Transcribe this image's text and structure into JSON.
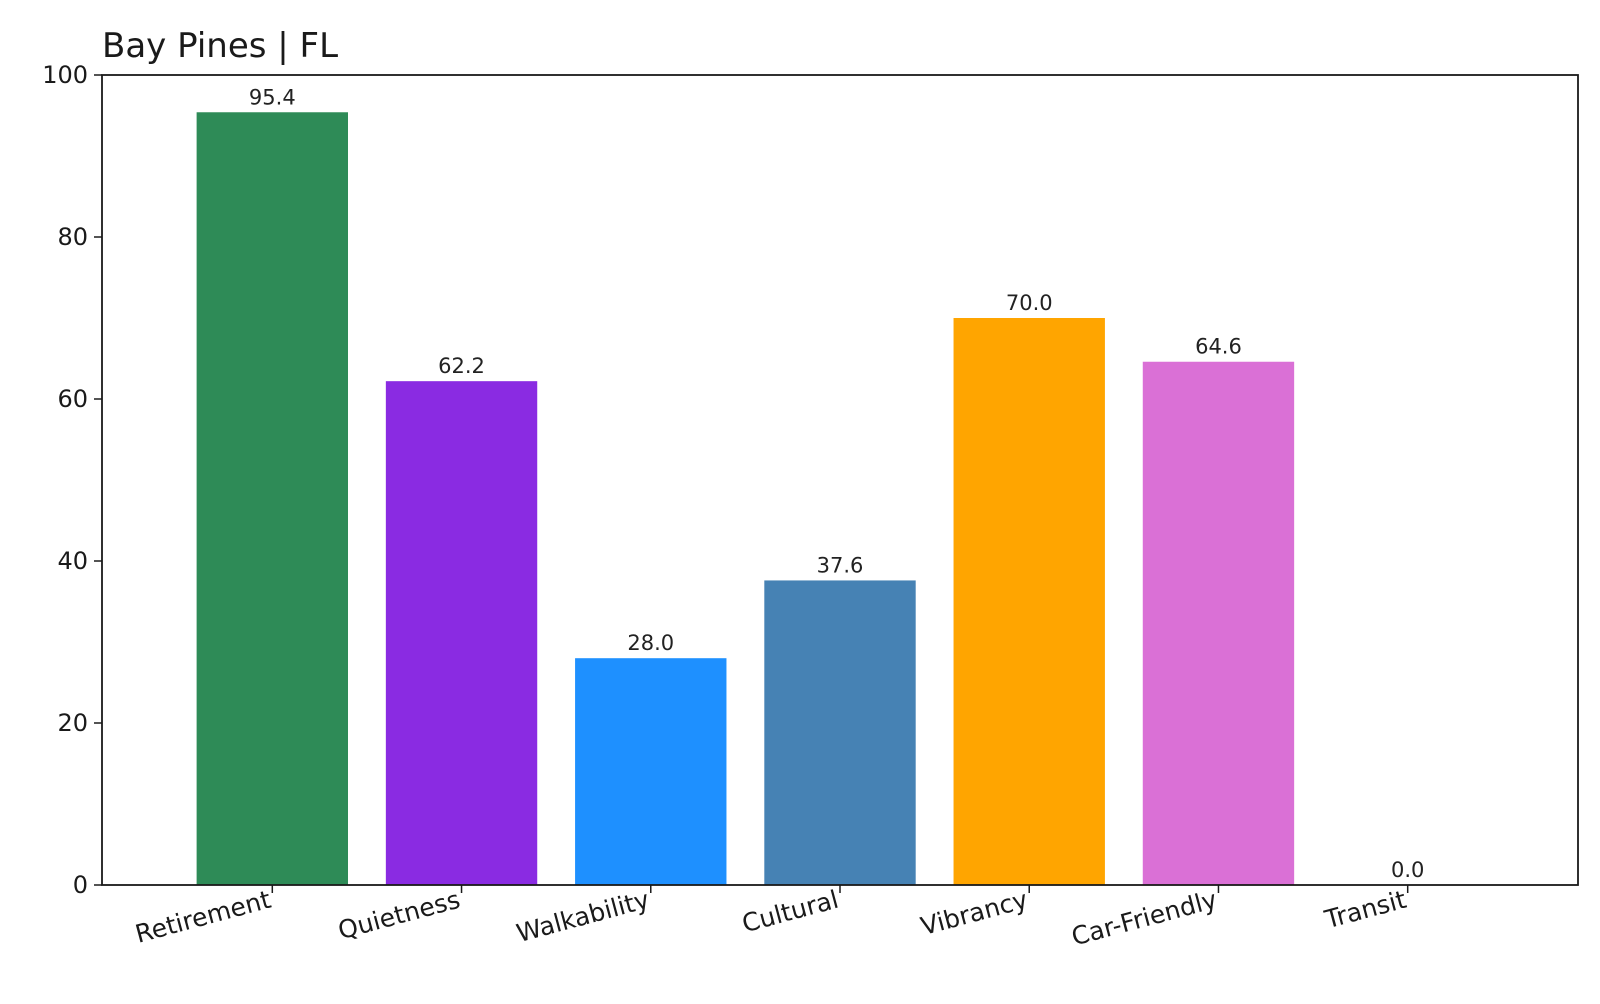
{
  "chart_data": {
    "type": "bar",
    "title": "Bay Pines | FL",
    "xlabel": "",
    "ylabel": "",
    "categories": [
      "Retirement",
      "Quietness",
      "Walkability",
      "Cultural",
      "Vibrancy",
      "Car-Friendly",
      "Transit"
    ],
    "values": [
      95.4,
      62.2,
      28.0,
      37.6,
      70.0,
      64.6,
      0.0
    ],
    "value_labels": [
      "95.4",
      "62.2",
      "28.0",
      "37.6",
      "70.0",
      "64.6",
      "0.0"
    ],
    "colors": [
      "#2e8b57",
      "#8a2be2",
      "#1e90ff",
      "#4682b4",
      "#ffa500",
      "#da70d6",
      "#808080"
    ],
    "ylim": [
      0,
      100
    ],
    "yticks": [
      0,
      20,
      40,
      60,
      80,
      100
    ],
    "ytick_labels": [
      "0",
      "20",
      "40",
      "60",
      "80",
      "100"
    ],
    "grid": false,
    "legend": "none",
    "xtick_rotation": "rotated ~15 degrees"
  }
}
